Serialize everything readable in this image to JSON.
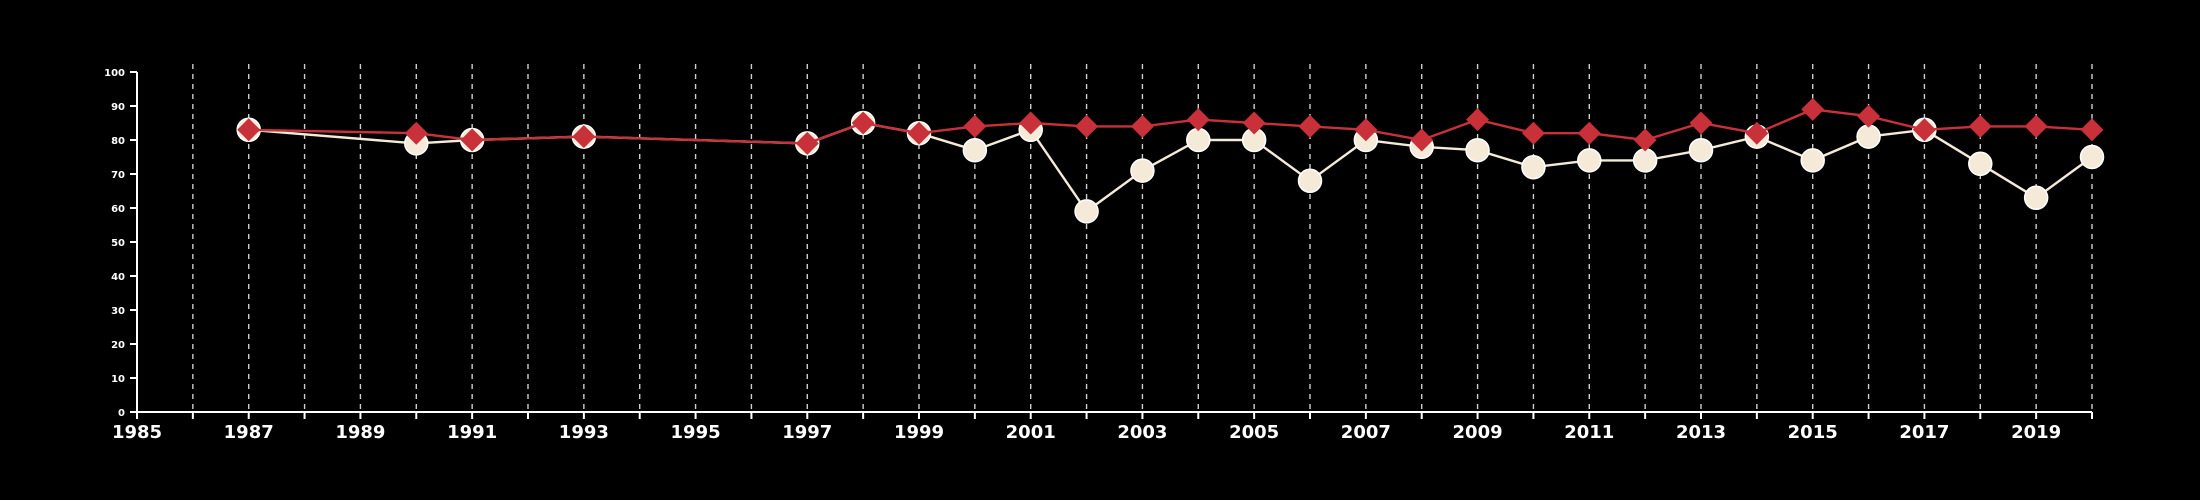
{
  "chart_data": {
    "type": "line",
    "title": "",
    "xlabel": "",
    "ylabel": "",
    "xlim": [
      1985,
      2020
    ],
    "ylim": [
      0,
      100
    ],
    "x_ticks": [
      1985,
      1987,
      1989,
      1991,
      1993,
      1995,
      1997,
      1999,
      2001,
      2003,
      2005,
      2007,
      2009,
      2011,
      2013,
      2015,
      2017,
      2019
    ],
    "y_ticks": [
      0,
      10,
      20,
      30,
      40,
      50,
      60,
      70,
      80,
      90,
      100
    ],
    "vertical_gridlines": "dashed, every year",
    "series": [
      {
        "marker": "circle",
        "color": "#f5ead8",
        "points": [
          {
            "x": 1987,
            "y": 83
          },
          {
            "x": 1990,
            "y": 79
          },
          {
            "x": 1991,
            "y": 80
          },
          {
            "x": 1993,
            "y": 81
          },
          {
            "x": 1997,
            "y": 79
          },
          {
            "x": 1998,
            "y": 85
          },
          {
            "x": 1999,
            "y": 82
          },
          {
            "x": 2000,
            "y": 77
          },
          {
            "x": 2001,
            "y": 83
          },
          {
            "x": 2002,
            "y": 59
          },
          {
            "x": 2003,
            "y": 71
          },
          {
            "x": 2004,
            "y": 80
          },
          {
            "x": 2005,
            "y": 80
          },
          {
            "x": 2006,
            "y": 68
          },
          {
            "x": 2007,
            "y": 80
          },
          {
            "x": 2008,
            "y": 78
          },
          {
            "x": 2009,
            "y": 77
          },
          {
            "x": 2010,
            "y": 72
          },
          {
            "x": 2011,
            "y": 74
          },
          {
            "x": 2012,
            "y": 74
          },
          {
            "x": 2013,
            "y": 77
          },
          {
            "x": 2014,
            "y": 81
          },
          {
            "x": 2015,
            "y": 74
          },
          {
            "x": 2016,
            "y": 81
          },
          {
            "x": 2017,
            "y": 83
          },
          {
            "x": 2018,
            "y": 73
          },
          {
            "x": 2019,
            "y": 63
          },
          {
            "x": 2020,
            "y": 75
          }
        ]
      },
      {
        "marker": "diamond",
        "color": "#c8303a",
        "points": [
          {
            "x": 1987,
            "y": 83
          },
          {
            "x": 1990,
            "y": 82
          },
          {
            "x": 1991,
            "y": 80
          },
          {
            "x": 1993,
            "y": 81
          },
          {
            "x": 1997,
            "y": 79
          },
          {
            "x": 1998,
            "y": 85
          },
          {
            "x": 1999,
            "y": 82
          },
          {
            "x": 2000,
            "y": 84
          },
          {
            "x": 2001,
            "y": 85
          },
          {
            "x": 2002,
            "y": 84
          },
          {
            "x": 2003,
            "y": 84
          },
          {
            "x": 2004,
            "y": 86
          },
          {
            "x": 2005,
            "y": 85
          },
          {
            "x": 2006,
            "y": 84
          },
          {
            "x": 2007,
            "y": 83
          },
          {
            "x": 2008,
            "y": 80
          },
          {
            "x": 2009,
            "y": 86
          },
          {
            "x": 2010,
            "y": 82
          },
          {
            "x": 2011,
            "y": 82
          },
          {
            "x": 2012,
            "y": 80
          },
          {
            "x": 2013,
            "y": 85
          },
          {
            "x": 2014,
            "y": 82
          },
          {
            "x": 2015,
            "y": 89
          },
          {
            "x": 2016,
            "y": 87
          },
          {
            "x": 2017,
            "y": 83
          },
          {
            "x": 2018,
            "y": 84
          },
          {
            "x": 2019,
            "y": 84
          },
          {
            "x": 2020,
            "y": 83
          }
        ]
      }
    ]
  }
}
